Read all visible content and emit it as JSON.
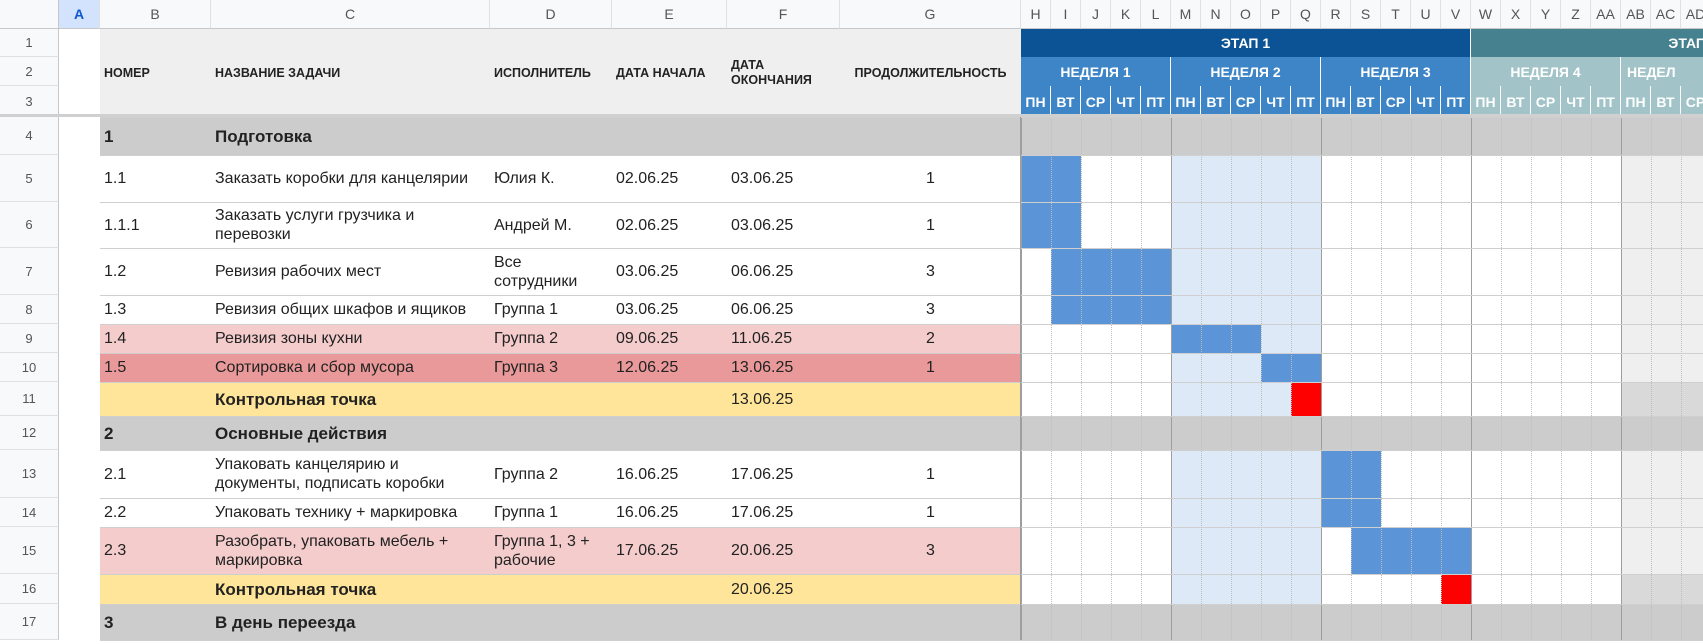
{
  "columns": [
    "A",
    "B",
    "C",
    "D",
    "E",
    "F",
    "G",
    "H",
    "I",
    "J",
    "K",
    "L",
    "M",
    "N",
    "O",
    "P",
    "Q",
    "R",
    "S",
    "T",
    "U",
    "V",
    "W",
    "X",
    "Y",
    "Z",
    "AA",
    "AB",
    "AC",
    "AD"
  ],
  "selected_column": "A",
  "row_numbers": [
    "1",
    "2",
    "3",
    "4",
    "5",
    "6",
    "7",
    "8",
    "9",
    "10",
    "11",
    "12",
    "13",
    "14",
    "15",
    "16",
    "17"
  ],
  "headers": {
    "number": "НОМЕР",
    "task": "НАЗВАНИЕ ЗАДАЧИ",
    "assignee": "ИСПОЛНИТЕЛЬ",
    "start": "ДАТА НАЧАЛА",
    "end": "ДАТА ОКОНЧАНИЯ",
    "duration": "ПРОДОЛЖИТЕЛЬНОСТЬ"
  },
  "stages": [
    {
      "label": "ЭТАП 1",
      "color": "#0b5394"
    },
    {
      "label": "ЭТАП",
      "color": "#45818e"
    }
  ],
  "weeks": [
    {
      "label": "НЕДЕЛЯ 1",
      "color": "#3d85c6"
    },
    {
      "label": "НЕДЕЛЯ 2",
      "color": "#3d85c6"
    },
    {
      "label": "НЕДЕЛЯ 3",
      "color": "#3d85c6"
    },
    {
      "label": "НЕДЕЛЯ 4",
      "color": "#a2c4c9"
    },
    {
      "label": "НЕДЕЛ",
      "color": "#a2c4c9"
    }
  ],
  "days": [
    "ПН",
    "ВТ",
    "СР",
    "ЧТ",
    "ПТ",
    "ПН",
    "ВТ",
    "СР",
    "ЧТ",
    "ПТ",
    "ПН",
    "ВТ",
    "СР",
    "ЧТ",
    "ПТ",
    "ПН",
    "ВТ",
    "СР",
    "ЧТ",
    "ПТ",
    "ПН",
    "ВТ",
    "СР"
  ],
  "colors": {
    "bar": "#5b95d8",
    "milestone": "#ff0000",
    "week2_shade": "#dde9f6",
    "week5_shade": "#efefef",
    "section": "#cccccc",
    "pink": "#f4cccc",
    "red": "#e99999",
    "yellow": "#ffe599",
    "header_bg": "#efefef"
  },
  "rows": [
    {
      "row": "4",
      "type": "section",
      "number": "1",
      "task": "Подготовка",
      "assignee": "",
      "start": "",
      "end": "",
      "duration": ""
    },
    {
      "row": "5",
      "type": "task",
      "number": "1.1",
      "task": "Заказать коробки для канцелярии",
      "assignee": "Юлия К.",
      "start": "02.06.25",
      "end": "03.06.25",
      "duration": "1",
      "bar": [
        0,
        2
      ]
    },
    {
      "row": "6",
      "type": "task",
      "number": "1.1.1",
      "task": "Заказать услуги грузчика и перевозки",
      "assignee": "Андрей М.",
      "start": "02.06.25",
      "end": "03.06.25",
      "duration": "1",
      "bar": [
        0,
        2
      ]
    },
    {
      "row": "7",
      "type": "task",
      "number": "1.2",
      "task": "Ревизия рабочих мест",
      "assignee": "Все сотрудники",
      "start": "03.06.25",
      "end": "06.06.25",
      "duration": "3",
      "bar": [
        1,
        5
      ]
    },
    {
      "row": "8",
      "type": "task",
      "number": "1.3",
      "task": "Ревизия общих шкафов и ящиков",
      "assignee": "Группа 1",
      "start": "03.06.25",
      "end": "06.06.25",
      "duration": "3",
      "bar": [
        1,
        5
      ]
    },
    {
      "row": "9",
      "type": "pink",
      "number": "1.4",
      "task": "Ревизия зоны кухни",
      "assignee": "Группа 2",
      "start": "09.06.25",
      "end": "11.06.25",
      "duration": "2",
      "bar": [
        5,
        8
      ]
    },
    {
      "row": "10",
      "type": "red",
      "number": "1.5",
      "task": "Сортировка и сбор мусора",
      "assignee": "Группа 3",
      "start": "12.06.25",
      "end": "13.06.25",
      "duration": "1",
      "bar": [
        8,
        10
      ]
    },
    {
      "row": "11",
      "type": "milestone",
      "number": "",
      "task": "Контрольная точка",
      "assignee": "",
      "start": "",
      "end": "13.06.25",
      "duration": "",
      "mark": 9
    },
    {
      "row": "12",
      "type": "section",
      "number": "2",
      "task": "Основные действия",
      "assignee": "",
      "start": "",
      "end": "",
      "duration": ""
    },
    {
      "row": "13",
      "type": "task",
      "number": "2.1",
      "task": "Упаковать канцелярию и документы, подписать коробки",
      "assignee": "Группа 2",
      "start": "16.06.25",
      "end": "17.06.25",
      "duration": "1",
      "bar": [
        10,
        12
      ]
    },
    {
      "row": "14",
      "type": "task",
      "number": "2.2",
      "task": "Упаковать технику + маркировка",
      "assignee": "Группа 1",
      "start": "16.06.25",
      "end": "17.06.25",
      "duration": "1",
      "bar": [
        10,
        12
      ]
    },
    {
      "row": "15",
      "type": "pink",
      "number": "2.3",
      "task": "Разобрать, упаковать мебель + маркировка",
      "assignee": "Группа 1, 3 + рабочие",
      "start": "17.06.25",
      "end": "20.06.25",
      "duration": "3",
      "bar": [
        11,
        15
      ]
    },
    {
      "row": "16",
      "type": "milestone",
      "number": "",
      "task": "Контрольная точка",
      "assignee": "",
      "start": "",
      "end": "20.06.25",
      "duration": "",
      "mark": 14
    },
    {
      "row": "17",
      "type": "section",
      "number": "3",
      "task": "В день переезда",
      "assignee": "",
      "start": "",
      "end": "",
      "duration": ""
    }
  ]
}
